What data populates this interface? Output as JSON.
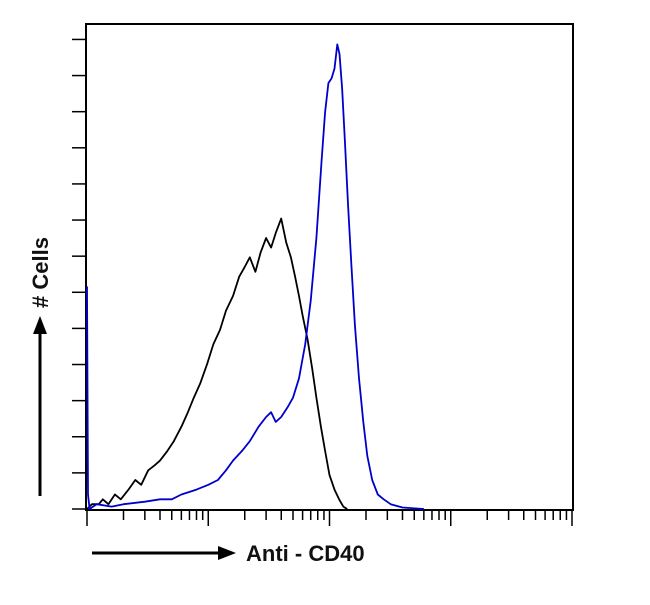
{
  "chart_data": {
    "type": "line",
    "title": "",
    "xlabel": "Anti - CD40",
    "ylabel": "# Cells",
    "x_scale": "log",
    "xlim": [
      1,
      10000
    ],
    "ylim": [
      0,
      100
    ],
    "grid": false,
    "legend": "none",
    "series": [
      {
        "color": "#000000",
        "points": [
          [
            1.0,
            0
          ],
          [
            1.1,
            1
          ],
          [
            1.25,
            1
          ],
          [
            1.35,
            2
          ],
          [
            1.5,
            1
          ],
          [
            1.7,
            3
          ],
          [
            1.9,
            2
          ],
          [
            2.2,
            4
          ],
          [
            2.5,
            6
          ],
          [
            2.8,
            5
          ],
          [
            3.2,
            8
          ],
          [
            3.6,
            9
          ],
          [
            4.0,
            10
          ],
          [
            4.6,
            12
          ],
          [
            5.2,
            14
          ],
          [
            6.0,
            17
          ],
          [
            6.8,
            20
          ],
          [
            7.6,
            23
          ],
          [
            8.6,
            26
          ],
          [
            9.8,
            30
          ],
          [
            11.0,
            34
          ],
          [
            12.5,
            37
          ],
          [
            14.0,
            41
          ],
          [
            16.0,
            44
          ],
          [
            18.0,
            48
          ],
          [
            20.0,
            50
          ],
          [
            22.0,
            52
          ],
          [
            24.5,
            49
          ],
          [
            27.0,
            53
          ],
          [
            30.0,
            56
          ],
          [
            33.0,
            54
          ],
          [
            36.0,
            57
          ],
          [
            40.0,
            60
          ],
          [
            44.0,
            55
          ],
          [
            48.0,
            52
          ],
          [
            52.0,
            48
          ],
          [
            56.0,
            44
          ],
          [
            60.0,
            40
          ],
          [
            66.0,
            35
          ],
          [
            72.0,
            29
          ],
          [
            78.0,
            23
          ],
          [
            85.0,
            17
          ],
          [
            92.0,
            12
          ],
          [
            100.0,
            7
          ],
          [
            110.0,
            4
          ],
          [
            120.0,
            2
          ],
          [
            130.0,
            0.5
          ],
          [
            140.0,
            0
          ]
        ]
      },
      {
        "color": "#0000cc",
        "points": [
          [
            1.0,
            46
          ],
          [
            1.02,
            3
          ],
          [
            1.05,
            0
          ],
          [
            1.2,
            1
          ],
          [
            1.6,
            0.5
          ],
          [
            2.0,
            1
          ],
          [
            3.0,
            1.5
          ],
          [
            4.0,
            2
          ],
          [
            5.0,
            2
          ],
          [
            6.0,
            3
          ],
          [
            8.0,
            4
          ],
          [
            10.0,
            5
          ],
          [
            12.0,
            6
          ],
          [
            14.0,
            8
          ],
          [
            16.0,
            10
          ],
          [
            19.0,
            12
          ],
          [
            22.0,
            14
          ],
          [
            26.0,
            17
          ],
          [
            30.0,
            19
          ],
          [
            33.0,
            20
          ],
          [
            36.0,
            18
          ],
          [
            40.0,
            19
          ],
          [
            45.0,
            21
          ],
          [
            50.0,
            23
          ],
          [
            56.0,
            27
          ],
          [
            63.0,
            34
          ],
          [
            70.0,
            43
          ],
          [
            78.0,
            56
          ],
          [
            86.0,
            72
          ],
          [
            92.0,
            82
          ],
          [
            98.0,
            88
          ],
          [
            104.0,
            89
          ],
          [
            110.0,
            91
          ],
          [
            116.0,
            96
          ],
          [
            121.0,
            94
          ],
          [
            127.0,
            87
          ],
          [
            134.0,
            76
          ],
          [
            142.0,
            63
          ],
          [
            152.0,
            50
          ],
          [
            162.0,
            38
          ],
          [
            175.0,
            27
          ],
          [
            190.0,
            18
          ],
          [
            205.0,
            11
          ],
          [
            225.0,
            6
          ],
          [
            250.0,
            3
          ],
          [
            280.0,
            2
          ],
          [
            320.0,
            1
          ],
          [
            400.0,
            0.3
          ],
          [
            600.0,
            0
          ]
        ]
      }
    ]
  }
}
